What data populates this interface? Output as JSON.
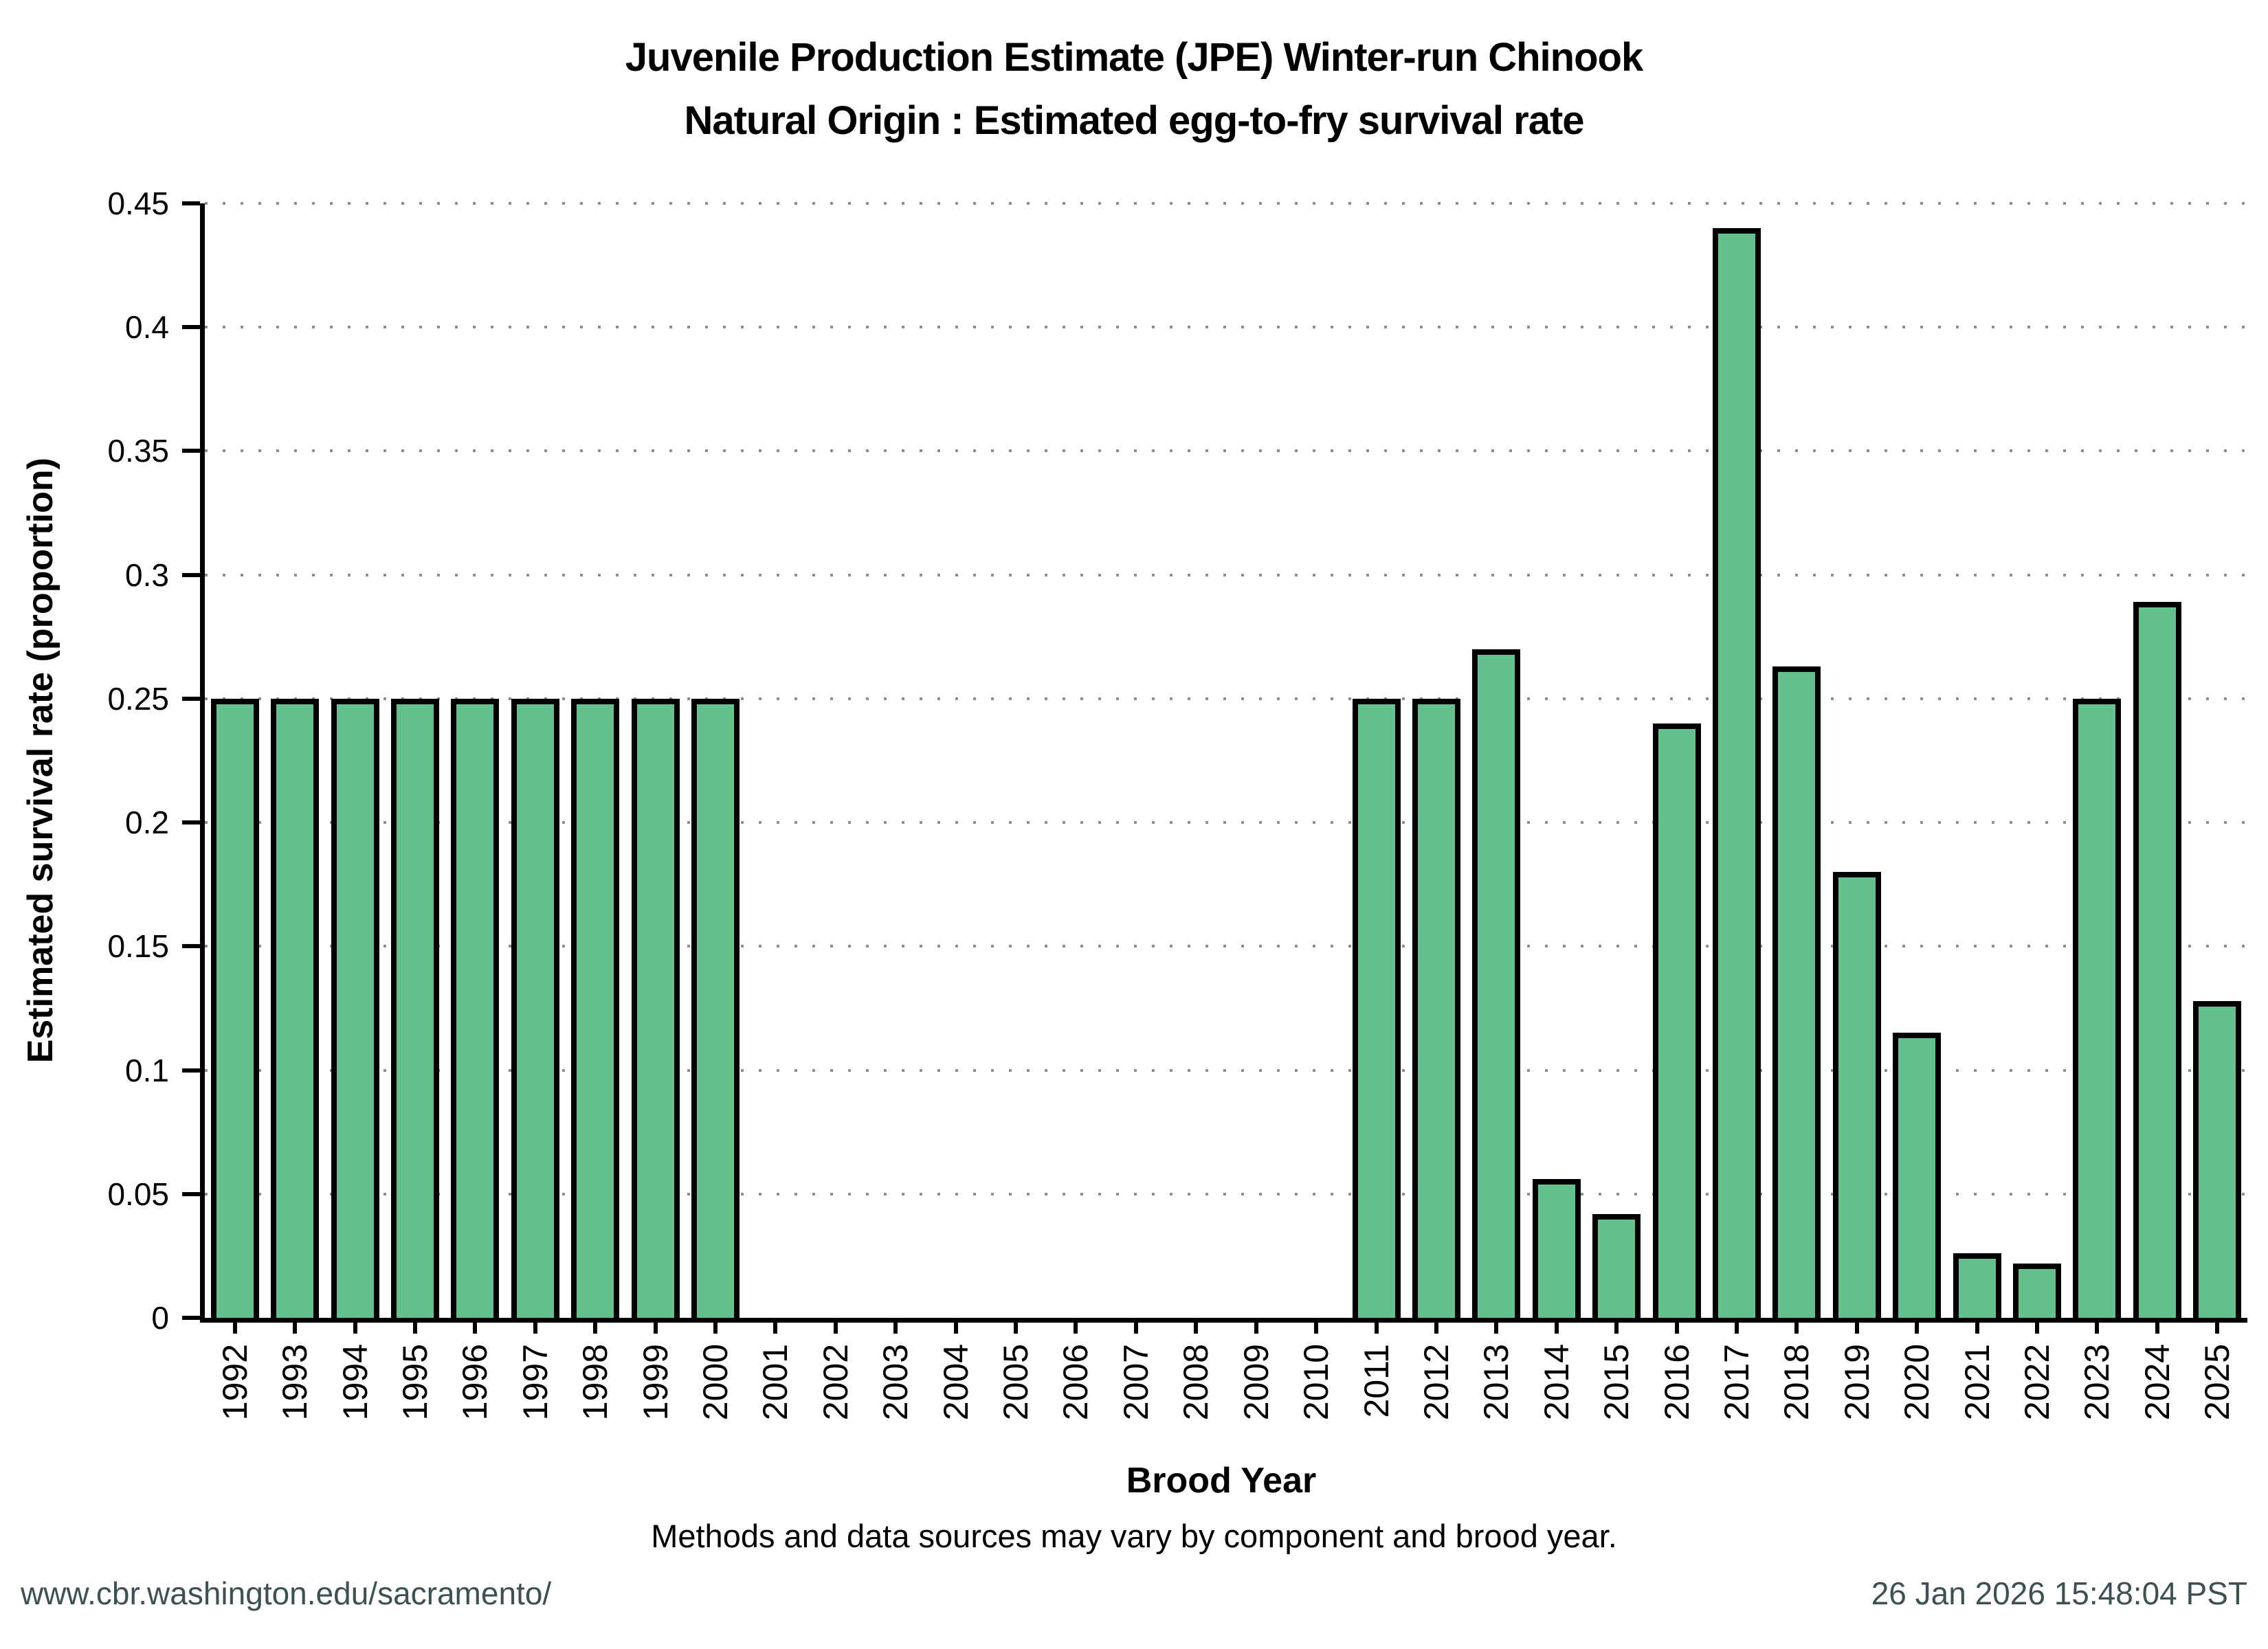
{
  "title": {
    "line1": "Juvenile Production Estimate (JPE) Winter-run Chinook",
    "line2": "Natural Origin : Estimated egg-to-fry survival rate"
  },
  "chart_data": {
    "type": "bar",
    "title": "Juvenile Production Estimate (JPE) Winter-run Chinook — Natural Origin : Estimated egg-to-fry survival rate",
    "xlabel": "Brood Year",
    "ylabel": "Estimated survival rate (proportion)",
    "ylim": [
      0,
      0.45
    ],
    "yticks": [
      0,
      0.05,
      0.1,
      0.15,
      0.2,
      0.25,
      0.3,
      0.35,
      0.4,
      0.45
    ],
    "ytick_labels": [
      "0",
      "0.05",
      "0.1",
      "0.15",
      "0.2",
      "0.25",
      "0.3",
      "0.35",
      "0.4",
      "0.45"
    ],
    "grid": "horizontal-dotted",
    "legend": "none",
    "bar_color": "#64c08c",
    "bar_edge_color": "#000000",
    "categories": [
      1992,
      1993,
      1994,
      1995,
      1996,
      1997,
      1998,
      1999,
      2000,
      2001,
      2002,
      2003,
      2004,
      2005,
      2006,
      2007,
      2008,
      2009,
      2010,
      2011,
      2012,
      2013,
      2014,
      2015,
      2016,
      2017,
      2018,
      2019,
      2020,
      2021,
      2022,
      2023,
      2024,
      2025
    ],
    "values": [
      0.25,
      0.25,
      0.25,
      0.25,
      0.25,
      0.25,
      0.25,
      0.25,
      0.25,
      null,
      null,
      null,
      null,
      null,
      null,
      null,
      null,
      null,
      null,
      0.25,
      0.25,
      0.27,
      0.056,
      0.042,
      0.24,
      0.44,
      0.263,
      0.18,
      0.115,
      0.026,
      0.022,
      0.25,
      0.289,
      0.128
    ]
  },
  "caption": "Methods and data sources may vary by component and brood year.",
  "footer": {
    "url": "www.cbr.washington.edu/sacramento/",
    "timestamp": "26 Jan 2026 15:48:04 PST",
    "text_color": "#3d5054"
  }
}
